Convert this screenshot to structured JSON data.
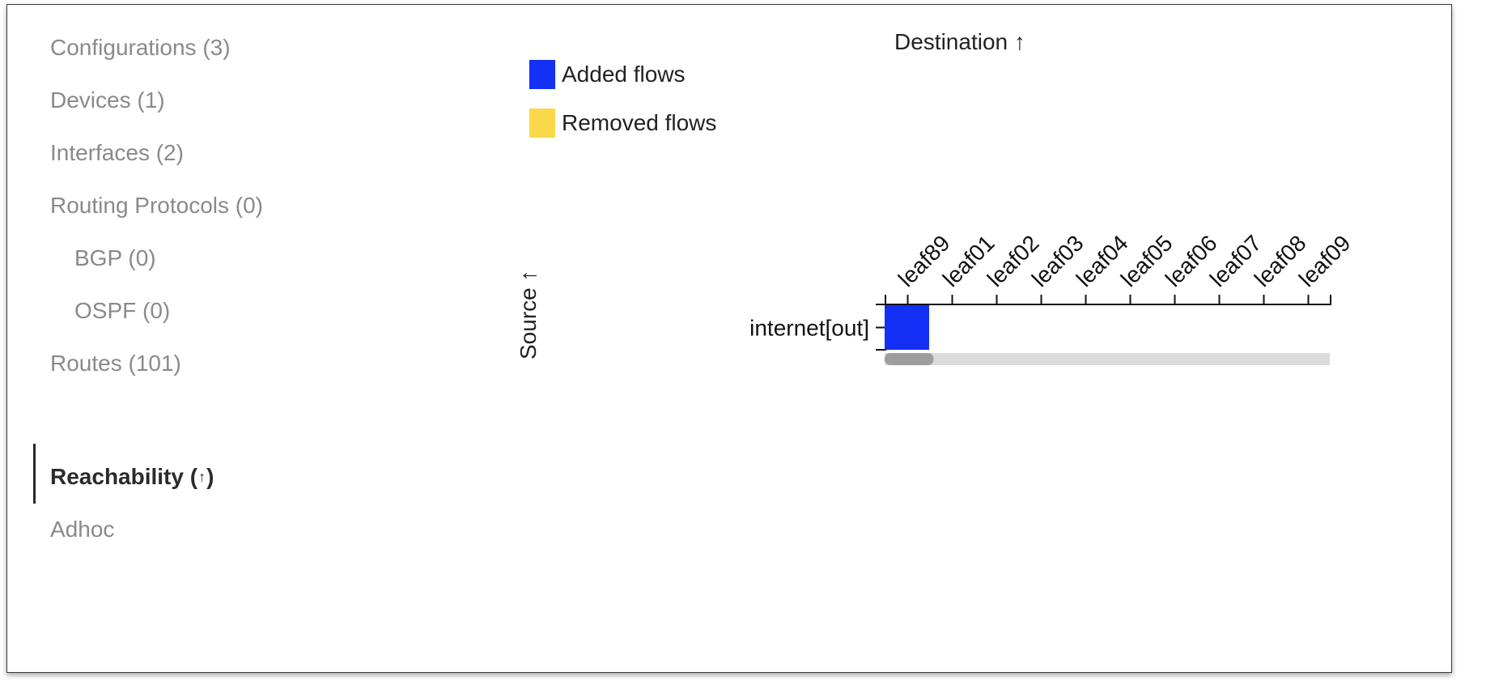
{
  "sidebar": {
    "items": [
      {
        "label": "Configurations (3)"
      },
      {
        "label": "Devices (1)"
      },
      {
        "label": "Interfaces (2)"
      },
      {
        "label": "Routing Protocols (0)"
      },
      {
        "label": "BGP (0)"
      },
      {
        "label": "OSPF (0)"
      },
      {
        "label": "Routes (101)"
      },
      {
        "label": "Reachability (",
        "suffix": ")",
        "icon": "up-arrow-icon"
      },
      {
        "label": "Adhoc"
      }
    ],
    "active_index": 7
  },
  "legend": {
    "items": [
      {
        "label": "Added flows",
        "color": "#1430f5"
      },
      {
        "label": "Removed flows",
        "color": "#fad84a"
      }
    ]
  },
  "chart": {
    "destination_label": "Destination",
    "destination_sort_icon": "up-arrow-icon",
    "source_label": "Source",
    "source_sort_icon": "up-arrow-icon",
    "columns": [
      "leaf89",
      "leaf01",
      "leaf02",
      "leaf03",
      "leaf04",
      "leaf05",
      "leaf06",
      "leaf07",
      "leaf08",
      "leaf09"
    ],
    "rows": [
      "internet[out]"
    ],
    "cells": [
      {
        "row": "internet[out]",
        "col": "leaf89",
        "type": "added"
      }
    ],
    "added_color": "#1430f5",
    "removed_color": "#fad84a",
    "scrollbar_visible_fraction": 0.11
  }
}
